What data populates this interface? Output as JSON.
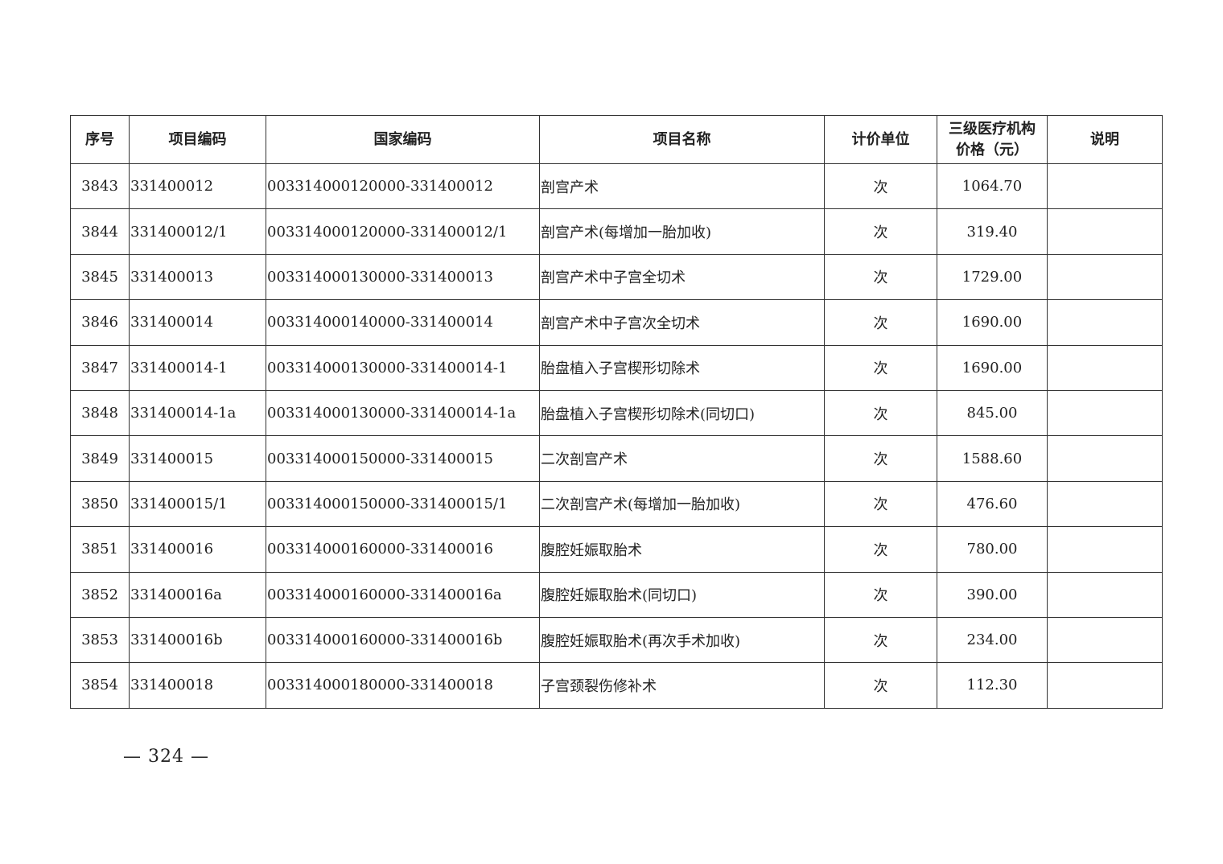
{
  "table": {
    "headers": [
      "序号",
      "项目编码",
      "国家编码",
      "项目名称",
      "计价单位",
      "三级医疗机构价格（元）",
      "说明"
    ],
    "header_price_line1": "三级医疗机构",
    "header_price_line2": "价格（元）",
    "rows": [
      {
        "no": "3843",
        "code": "331400012",
        "national": "003314000120000-331400012",
        "name": "剖宫产术",
        "unit": "次",
        "price": "1064.70",
        "note": ""
      },
      {
        "no": "3844",
        "code": "331400012/1",
        "national": "003314000120000-331400012/1",
        "name": "剖宫产术(每增加一胎加收)",
        "unit": "次",
        "price": "319.40",
        "note": ""
      },
      {
        "no": "3845",
        "code": "331400013",
        "national": "003314000130000-331400013",
        "name": "剖宫产术中子宫全切术",
        "unit": "次",
        "price": "1729.00",
        "note": ""
      },
      {
        "no": "3846",
        "code": "331400014",
        "national": "003314000140000-331400014",
        "name": "剖宫产术中子宫次全切术",
        "unit": "次",
        "price": "1690.00",
        "note": ""
      },
      {
        "no": "3847",
        "code": "331400014-1",
        "national": "003314000130000-331400014-1",
        "name": "胎盘植入子宫楔形切除术",
        "unit": "次",
        "price": "1690.00",
        "note": ""
      },
      {
        "no": "3848",
        "code": "331400014-1a",
        "national": "003314000130000-331400014-1a",
        "name": "胎盘植入子宫楔形切除术(同切口)",
        "unit": "次",
        "price": "845.00",
        "note": ""
      },
      {
        "no": "3849",
        "code": "331400015",
        "national": "003314000150000-331400015",
        "name": "二次剖宫产术",
        "unit": "次",
        "price": "1588.60",
        "note": ""
      },
      {
        "no": "3850",
        "code": "331400015/1",
        "national": "003314000150000-331400015/1",
        "name": "二次剖宫产术(每增加一胎加收)",
        "unit": "次",
        "price": "476.60",
        "note": ""
      },
      {
        "no": "3851",
        "code": "331400016",
        "national": "003314000160000-331400016",
        "name": "腹腔妊娠取胎术",
        "unit": "次",
        "price": "780.00",
        "note": ""
      },
      {
        "no": "3852",
        "code": "331400016a",
        "national": "003314000160000-331400016a",
        "name": "腹腔妊娠取胎术(同切口)",
        "unit": "次",
        "price": "390.00",
        "note": ""
      },
      {
        "no": "3853",
        "code": "331400016b",
        "national": "003314000160000-331400016b",
        "name": "腹腔妊娠取胎术(再次手术加收)",
        "unit": "次",
        "price": "234.00",
        "note": ""
      },
      {
        "no": "3854",
        "code": "331400018",
        "national": "003314000180000-331400018",
        "name": "子宫颈裂伤修补术",
        "unit": "次",
        "price": "112.30",
        "note": ""
      }
    ]
  },
  "footer": {
    "page_number": "— 324 —"
  }
}
